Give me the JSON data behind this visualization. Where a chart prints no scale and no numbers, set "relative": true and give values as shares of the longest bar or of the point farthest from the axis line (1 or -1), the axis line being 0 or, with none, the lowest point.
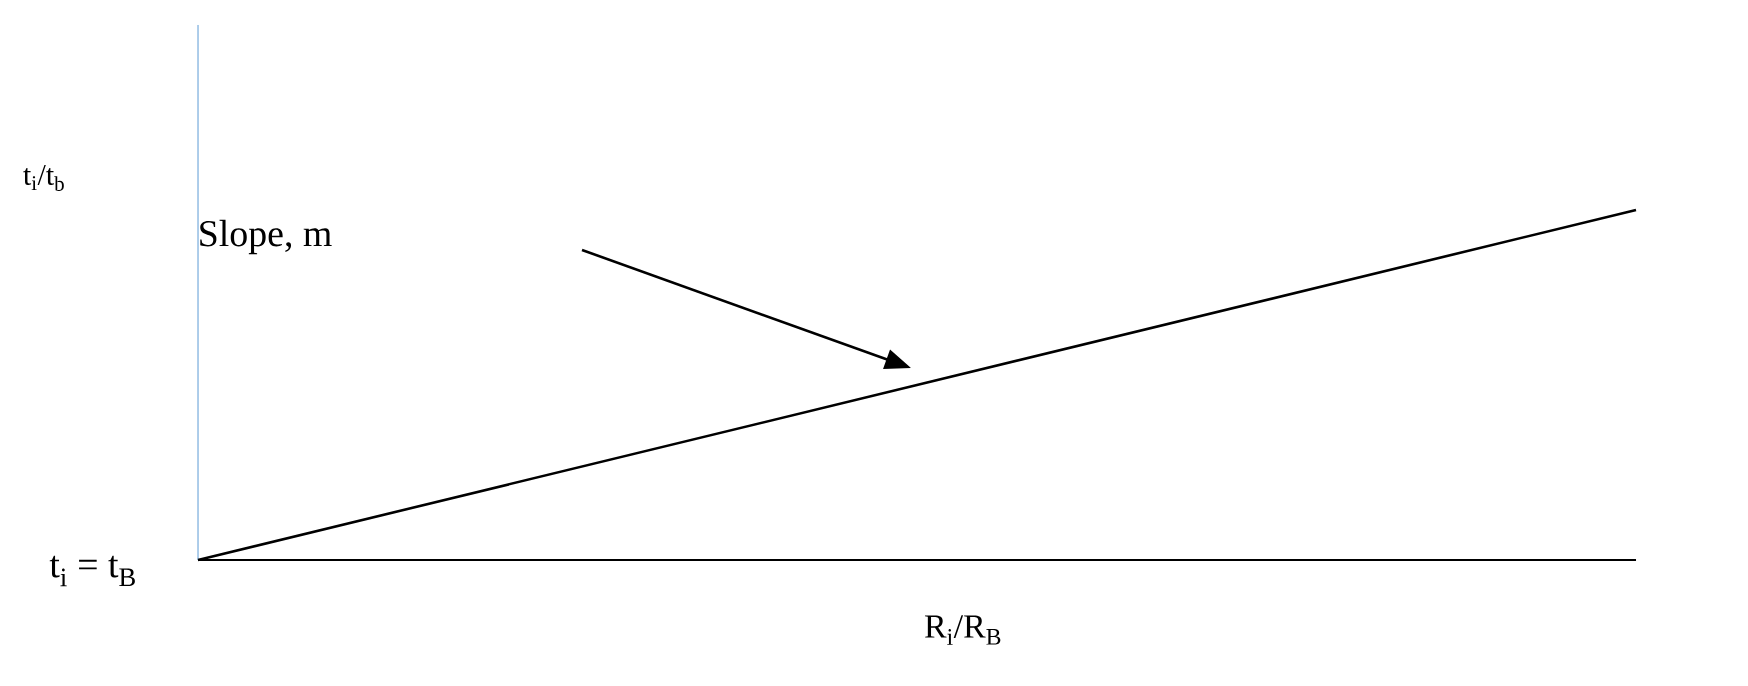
{
  "chart_data": {
    "type": "line",
    "relative": true,
    "xlabel": "R$_{i}$/R$_{B}$",
    "ylabel": "t$_{i}$/t$_{b}$",
    "categories": [
      null,
      null
    ],
    "values": [
      0,
      1
    ],
    "color": "#000000",
    "marker": "none",
    "line_style": "solid",
    "annotations": [
      "t$_{i}$ = t$_{B}$",
      "Slope,  m"
    ]
  }
}
